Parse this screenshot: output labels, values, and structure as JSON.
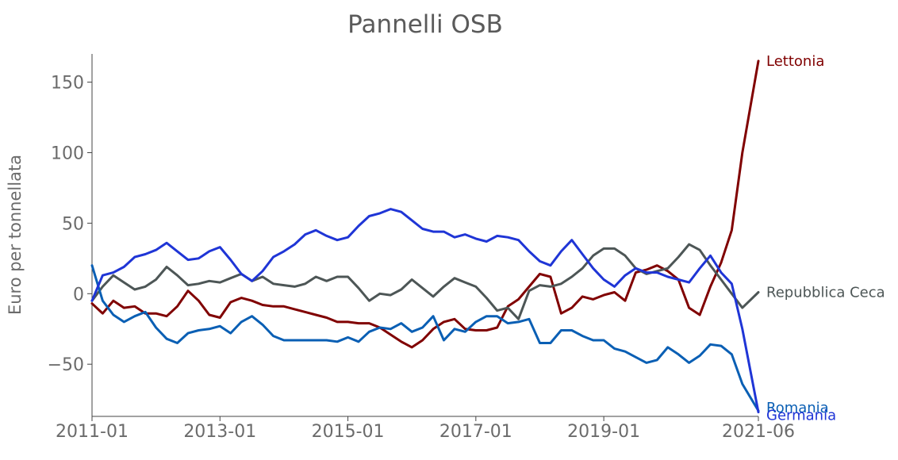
{
  "chart_data": {
    "type": "line",
    "title": "Pannelli OSB",
    "xlabel": "",
    "ylabel": "Euro per tonnellata",
    "x_ticks": [
      "2011-01",
      "2013-01",
      "2015-01",
      "2017-01",
      "2019-01",
      "2021-06"
    ],
    "y_ticks": [
      150,
      100,
      50,
      0,
      -50
    ],
    "y_tick_labels": [
      "150",
      "100",
      "50",
      "0",
      "−50"
    ],
    "xlim": [
      "2011-01",
      "2021-06"
    ],
    "ylim": [
      -87,
      170
    ],
    "grid": false,
    "legend": "labels at line ends",
    "series": [
      {
        "name": "Lettonia",
        "color": "#800000",
        "points": [
          [
            "2011-01",
            -7
          ],
          [
            "2011-03",
            -14
          ],
          [
            "2011-05",
            -5
          ],
          [
            "2011-07",
            -10
          ],
          [
            "2011-09",
            -9
          ],
          [
            "2011-11",
            -14
          ],
          [
            "2012-01",
            -14
          ],
          [
            "2012-03",
            -16
          ],
          [
            "2012-05",
            -9
          ],
          [
            "2012-07",
            2
          ],
          [
            "2012-09",
            -5
          ],
          [
            "2012-11",
            -15
          ],
          [
            "2013-01",
            -17
          ],
          [
            "2013-03",
            -6
          ],
          [
            "2013-05",
            -3
          ],
          [
            "2013-07",
            -5
          ],
          [
            "2013-09",
            -8
          ],
          [
            "2013-11",
            -9
          ],
          [
            "2014-01",
            -9
          ],
          [
            "2014-03",
            -11
          ],
          [
            "2014-05",
            -13
          ],
          [
            "2014-07",
            -15
          ],
          [
            "2014-09",
            -17
          ],
          [
            "2014-11",
            -20
          ],
          [
            "2015-01",
            -20
          ],
          [
            "2015-03",
            -21
          ],
          [
            "2015-05",
            -21
          ],
          [
            "2015-07",
            -24
          ],
          [
            "2015-09",
            -29
          ],
          [
            "2015-11",
            -34
          ],
          [
            "2016-01",
            -38
          ],
          [
            "2016-03",
            -33
          ],
          [
            "2016-05",
            -25
          ],
          [
            "2016-07",
            -20
          ],
          [
            "2016-09",
            -18
          ],
          [
            "2016-11",
            -25
          ],
          [
            "2017-01",
            -26
          ],
          [
            "2017-03",
            -26
          ],
          [
            "2017-05",
            -24
          ],
          [
            "2017-07",
            -9
          ],
          [
            "2017-09",
            -4
          ],
          [
            "2017-11",
            5
          ],
          [
            "2018-01",
            14
          ],
          [
            "2018-03",
            12
          ],
          [
            "2018-05",
            -14
          ],
          [
            "2018-07",
            -10
          ],
          [
            "2018-09",
            -2
          ],
          [
            "2018-11",
            -4
          ],
          [
            "2019-01",
            -1
          ],
          [
            "2019-03",
            1
          ],
          [
            "2019-05",
            -5
          ],
          [
            "2019-07",
            15
          ],
          [
            "2019-09",
            17
          ],
          [
            "2019-11",
            20
          ],
          [
            "2020-01",
            16
          ],
          [
            "2020-03",
            10
          ],
          [
            "2020-05",
            -10
          ],
          [
            "2020-07",
            -15
          ],
          [
            "2020-09",
            5
          ],
          [
            "2020-11",
            22
          ],
          [
            "2021-01",
            45
          ],
          [
            "2021-03",
            100
          ],
          [
            "2021-06",
            165
          ]
        ]
      },
      {
        "name": "Repubblica Ceca",
        "color": "#4d5656",
        "points": [
          [
            "2011-01",
            -5
          ],
          [
            "2011-03",
            5
          ],
          [
            "2011-05",
            13
          ],
          [
            "2011-07",
            8
          ],
          [
            "2011-09",
            3
          ],
          [
            "2011-11",
            5
          ],
          [
            "2012-01",
            10
          ],
          [
            "2012-03",
            19
          ],
          [
            "2012-05",
            13
          ],
          [
            "2012-07",
            6
          ],
          [
            "2012-09",
            7
          ],
          [
            "2012-11",
            9
          ],
          [
            "2013-01",
            8
          ],
          [
            "2013-03",
            11
          ],
          [
            "2013-05",
            14
          ],
          [
            "2013-07",
            9
          ],
          [
            "2013-09",
            12
          ],
          [
            "2013-11",
            7
          ],
          [
            "2014-01",
            6
          ],
          [
            "2014-03",
            5
          ],
          [
            "2014-05",
            7
          ],
          [
            "2014-07",
            12
          ],
          [
            "2014-09",
            9
          ],
          [
            "2014-11",
            12
          ],
          [
            "2015-01",
            12
          ],
          [
            "2015-03",
            4
          ],
          [
            "2015-05",
            -5
          ],
          [
            "2015-07",
            0
          ],
          [
            "2015-09",
            -1
          ],
          [
            "2015-11",
            3
          ],
          [
            "2016-01",
            10
          ],
          [
            "2016-03",
            4
          ],
          [
            "2016-05",
            -2
          ],
          [
            "2016-07",
            5
          ],
          [
            "2016-09",
            11
          ],
          [
            "2016-11",
            8
          ],
          [
            "2017-01",
            5
          ],
          [
            "2017-03",
            -3
          ],
          [
            "2017-05",
            -12
          ],
          [
            "2017-07",
            -10
          ],
          [
            "2017-09",
            -18
          ],
          [
            "2017-11",
            2
          ],
          [
            "2018-01",
            6
          ],
          [
            "2018-03",
            5
          ],
          [
            "2018-05",
            7
          ],
          [
            "2018-07",
            12
          ],
          [
            "2018-09",
            18
          ],
          [
            "2018-11",
            27
          ],
          [
            "2019-01",
            32
          ],
          [
            "2019-03",
            32
          ],
          [
            "2019-05",
            27
          ],
          [
            "2019-07",
            18
          ],
          [
            "2019-09",
            14
          ],
          [
            "2019-11",
            16
          ],
          [
            "2020-01",
            18
          ],
          [
            "2020-03",
            26
          ],
          [
            "2020-05",
            35
          ],
          [
            "2020-07",
            31
          ],
          [
            "2020-09",
            20
          ],
          [
            "2020-11",
            10
          ],
          [
            "2021-01",
            0
          ],
          [
            "2021-03",
            -10
          ],
          [
            "2021-06",
            1
          ]
        ]
      },
      {
        "name": "Romania",
        "color": "#0a5fb4",
        "points": [
          [
            "2011-01",
            20
          ],
          [
            "2011-03",
            -5
          ],
          [
            "2011-05",
            -15
          ],
          [
            "2011-07",
            -20
          ],
          [
            "2011-09",
            -16
          ],
          [
            "2011-11",
            -13
          ],
          [
            "2012-01",
            -24
          ],
          [
            "2012-03",
            -32
          ],
          [
            "2012-05",
            -35
          ],
          [
            "2012-07",
            -28
          ],
          [
            "2012-09",
            -26
          ],
          [
            "2012-11",
            -25
          ],
          [
            "2013-01",
            -23
          ],
          [
            "2013-03",
            -28
          ],
          [
            "2013-05",
            -20
          ],
          [
            "2013-07",
            -16
          ],
          [
            "2013-09",
            -22
          ],
          [
            "2013-11",
            -30
          ],
          [
            "2014-01",
            -33
          ],
          [
            "2014-03",
            -33
          ],
          [
            "2014-05",
            -33
          ],
          [
            "2014-07",
            -33
          ],
          [
            "2014-09",
            -33
          ],
          [
            "2014-11",
            -34
          ],
          [
            "2015-01",
            -31
          ],
          [
            "2015-03",
            -34
          ],
          [
            "2015-05",
            -27
          ],
          [
            "2015-07",
            -24
          ],
          [
            "2015-09",
            -25
          ],
          [
            "2015-11",
            -21
          ],
          [
            "2016-01",
            -27
          ],
          [
            "2016-03",
            -24
          ],
          [
            "2016-05",
            -16
          ],
          [
            "2016-07",
            -33
          ],
          [
            "2016-09",
            -25
          ],
          [
            "2016-11",
            -27
          ],
          [
            "2017-01",
            -20
          ],
          [
            "2017-03",
            -16
          ],
          [
            "2017-05",
            -16
          ],
          [
            "2017-07",
            -21
          ],
          [
            "2017-09",
            -20
          ],
          [
            "2017-11",
            -18
          ],
          [
            "2018-01",
            -35
          ],
          [
            "2018-03",
            -35
          ],
          [
            "2018-05",
            -26
          ],
          [
            "2018-07",
            -26
          ],
          [
            "2018-09",
            -30
          ],
          [
            "2018-11",
            -33
          ],
          [
            "2019-01",
            -33
          ],
          [
            "2019-03",
            -39
          ],
          [
            "2019-05",
            -41
          ],
          [
            "2019-07",
            -45
          ],
          [
            "2019-09",
            -49
          ],
          [
            "2019-11",
            -47
          ],
          [
            "2020-01",
            -38
          ],
          [
            "2020-03",
            -43
          ],
          [
            "2020-05",
            -49
          ],
          [
            "2020-07",
            -44
          ],
          [
            "2020-09",
            -36
          ],
          [
            "2020-11",
            -37
          ],
          [
            "2021-01",
            -43
          ],
          [
            "2021-03",
            -64
          ],
          [
            "2021-06",
            -83
          ]
        ]
      },
      {
        "name": "Germania",
        "color": "#1f35d6",
        "points": [
          [
            "2011-01",
            -5
          ],
          [
            "2011-03",
            13
          ],
          [
            "2011-05",
            15
          ],
          [
            "2011-07",
            19
          ],
          [
            "2011-09",
            26
          ],
          [
            "2011-11",
            28
          ],
          [
            "2012-01",
            31
          ],
          [
            "2012-03",
            36
          ],
          [
            "2012-05",
            30
          ],
          [
            "2012-07",
            24
          ],
          [
            "2012-09",
            25
          ],
          [
            "2012-11",
            30
          ],
          [
            "2013-01",
            33
          ],
          [
            "2013-03",
            24
          ],
          [
            "2013-05",
            14
          ],
          [
            "2013-07",
            9
          ],
          [
            "2013-09",
            16
          ],
          [
            "2013-11",
            26
          ],
          [
            "2014-01",
            30
          ],
          [
            "2014-03",
            35
          ],
          [
            "2014-05",
            42
          ],
          [
            "2014-07",
            45
          ],
          [
            "2014-09",
            41
          ],
          [
            "2014-11",
            38
          ],
          [
            "2015-01",
            40
          ],
          [
            "2015-03",
            48
          ],
          [
            "2015-05",
            55
          ],
          [
            "2015-07",
            57
          ],
          [
            "2015-09",
            60
          ],
          [
            "2015-11",
            58
          ],
          [
            "2016-01",
            52
          ],
          [
            "2016-03",
            46
          ],
          [
            "2016-05",
            44
          ],
          [
            "2016-07",
            44
          ],
          [
            "2016-09",
            40
          ],
          [
            "2016-11",
            42
          ],
          [
            "2017-01",
            39
          ],
          [
            "2017-03",
            37
          ],
          [
            "2017-05",
            41
          ],
          [
            "2017-07",
            40
          ],
          [
            "2017-09",
            38
          ],
          [
            "2017-11",
            30
          ],
          [
            "2018-01",
            23
          ],
          [
            "2018-03",
            20
          ],
          [
            "2018-05",
            30
          ],
          [
            "2018-07",
            38
          ],
          [
            "2018-09",
            28
          ],
          [
            "2018-11",
            18
          ],
          [
            "2019-01",
            10
          ],
          [
            "2019-03",
            5
          ],
          [
            "2019-05",
            13
          ],
          [
            "2019-07",
            18
          ],
          [
            "2019-09",
            15
          ],
          [
            "2019-11",
            15
          ],
          [
            "2020-01",
            12
          ],
          [
            "2020-03",
            10
          ],
          [
            "2020-05",
            8
          ],
          [
            "2020-07",
            18
          ],
          [
            "2020-09",
            27
          ],
          [
            "2020-11",
            15
          ],
          [
            "2021-01",
            7
          ],
          [
            "2021-03",
            -25
          ],
          [
            "2021-06",
            -84
          ]
        ]
      }
    ]
  }
}
